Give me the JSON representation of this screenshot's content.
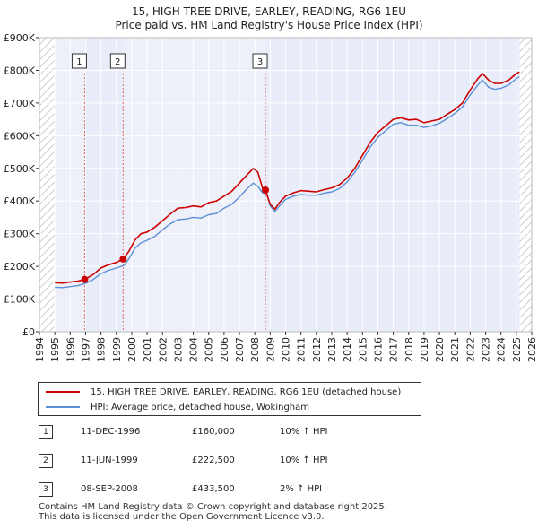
{
  "title_line1": "15, HIGH TREE DRIVE, EARLEY, READING, RG6 1EU",
  "title_line2": "Price paid vs. HM Land Registry's House Price Index (HPI)",
  "colors": {
    "price_line": "#cc0000",
    "hpi_line": "#5b8fd6",
    "shade": "#e8ecf8",
    "marker_line": "#e06666",
    "grid": "#ffffff",
    "plot_bg": "#eef0f9"
  },
  "legend": {
    "price_label": "15, HIGH TREE DRIVE, EARLEY, READING, RG6 1EU (detached house)",
    "hpi_label": "HPI: Average price, detached house, Wokingham"
  },
  "sales": [
    {
      "num": "1",
      "date": "11-DEC-1996",
      "price": "£160,000",
      "hpi": "10% ↑ HPI"
    },
    {
      "num": "2",
      "date": "11-JUN-1999",
      "price": "£222,500",
      "hpi": "10% ↑ HPI"
    },
    {
      "num": "3",
      "date": "08-SEP-2008",
      "price": "£433,500",
      "hpi": "2% ↑ HPI"
    }
  ],
  "footer_line1": "Contains HM Land Registry data © Crown copyright and database right 2025.",
  "footer_line2": "This data is licensed under the Open Government Licence v3.0.",
  "chart_data": {
    "type": "line",
    "xlim": [
      1994,
      2026
    ],
    "ylim": [
      0,
      900000
    ],
    "x_ticks": [
      1994,
      1995,
      1996,
      1997,
      1998,
      1999,
      2000,
      2001,
      2002,
      2003,
      2004,
      2005,
      2006,
      2007,
      2008,
      2009,
      2010,
      2011,
      2012,
      2013,
      2014,
      2015,
      2016,
      2017,
      2018,
      2019,
      2020,
      2021,
      2022,
      2023,
      2024,
      2025,
      2026
    ],
    "y_ticks": [
      0,
      100000,
      200000,
      300000,
      400000,
      500000,
      600000,
      700000,
      800000,
      900000
    ],
    "y_tick_labels": [
      "£0",
      "£100K",
      "£200K",
      "£300K",
      "£400K",
      "£500K",
      "£600K",
      "£700K",
      "£800K",
      "£900K"
    ],
    "shaded_ranges": [
      [
        1996.94,
        1999.44
      ],
      [
        2008.69,
        2025.2
      ]
    ],
    "hatched_ranges": [
      [
        1994,
        1995.0
      ],
      [
        2025.2,
        2026
      ]
    ],
    "sale_markers": [
      {
        "label": "1",
        "x": 1996.94,
        "y": 160000
      },
      {
        "label": "2",
        "x": 1999.44,
        "y": 222500
      },
      {
        "label": "3",
        "x": 2008.69,
        "y": 433500
      }
    ],
    "series": [
      {
        "name": "15, HIGH TREE DRIVE, EARLEY, READING, RG6 1EU (detached house)",
        "x": [
          1995.0,
          1995.5,
          1996.0,
          1996.5,
          1996.94,
          1997.5,
          1998.0,
          1998.5,
          1999.0,
          1999.44,
          1999.8,
          2000.2,
          2000.6,
          2001.0,
          2001.5,
          2002.0,
          2002.5,
          2003.0,
          2003.5,
          2004.0,
          2004.5,
          2005.0,
          2005.5,
          2006.0,
          2006.5,
          2007.0,
          2007.5,
          2007.9,
          2008.2,
          2008.5,
          2008.69,
          2009.0,
          2009.3,
          2009.6,
          2010.0,
          2010.5,
          2011.0,
          2011.5,
          2012.0,
          2012.5,
          2013.0,
          2013.5,
          2014.0,
          2014.5,
          2015.0,
          2015.5,
          2016.0,
          2016.5,
          2017.0,
          2017.5,
          2018.0,
          2018.5,
          2019.0,
          2019.5,
          2020.0,
          2020.5,
          2021.0,
          2021.5,
          2022.0,
          2022.5,
          2022.8,
          2023.2,
          2023.6,
          2024.0,
          2024.5,
          2025.0,
          2025.2
        ],
        "values": [
          150000,
          149000,
          152000,
          155000,
          160000,
          175000,
          195000,
          205000,
          212000,
          222500,
          245000,
          280000,
          300000,
          305000,
          320000,
          340000,
          360000,
          378000,
          380000,
          385000,
          382000,
          395000,
          400000,
          415000,
          430000,
          455000,
          480000,
          500000,
          488000,
          440000,
          433500,
          390000,
          375000,
          395000,
          415000,
          425000,
          432000,
          430000,
          428000,
          435000,
          440000,
          450000,
          470000,
          500000,
          540000,
          580000,
          610000,
          630000,
          650000,
          655000,
          648000,
          650000,
          640000,
          645000,
          650000,
          665000,
          680000,
          700000,
          740000,
          775000,
          790000,
          770000,
          760000,
          760000,
          770000,
          790000,
          795000
        ]
      },
      {
        "name": "HPI: Average price, detached house, Wokingham",
        "x": [
          1995.0,
          1995.5,
          1996.0,
          1996.5,
          1997.0,
          1997.5,
          1998.0,
          1998.5,
          1999.0,
          1999.5,
          1999.8,
          2000.2,
          2000.6,
          2001.0,
          2001.5,
          2002.0,
          2002.5,
          2003.0,
          2003.5,
          2004.0,
          2004.5,
          2005.0,
          2005.5,
          2006.0,
          2006.5,
          2007.0,
          2007.5,
          2007.9,
          2008.2,
          2008.5,
          2008.8,
          2009.0,
          2009.3,
          2009.6,
          2010.0,
          2010.5,
          2011.0,
          2011.5,
          2012.0,
          2012.5,
          2013.0,
          2013.5,
          2014.0,
          2014.5,
          2015.0,
          2015.5,
          2016.0,
          2016.5,
          2017.0,
          2017.5,
          2018.0,
          2018.5,
          2019.0,
          2019.5,
          2020.0,
          2020.5,
          2021.0,
          2021.5,
          2022.0,
          2022.5,
          2022.8,
          2023.2,
          2023.6,
          2024.0,
          2024.5,
          2025.0,
          2025.2
        ],
        "values": [
          136000,
          135000,
          138000,
          141000,
          148000,
          160000,
          178000,
          188000,
          195000,
          203000,
          222000,
          255000,
          272000,
          280000,
          292000,
          312000,
          330000,
          343000,
          345000,
          350000,
          348000,
          358000,
          362000,
          378000,
          390000,
          412000,
          438000,
          455000,
          445000,
          425000,
          422000,
          385000,
          368000,
          385000,
          405000,
          415000,
          420000,
          418000,
          418000,
          424000,
          428000,
          438000,
          458000,
          488000,
          525000,
          565000,
          595000,
          615000,
          635000,
          640000,
          632000,
          632000,
          625000,
          630000,
          638000,
          652000,
          668000,
          688000,
          725000,
          755000,
          770000,
          748000,
          742000,
          745000,
          755000,
          775000,
          780000
        ]
      }
    ]
  }
}
